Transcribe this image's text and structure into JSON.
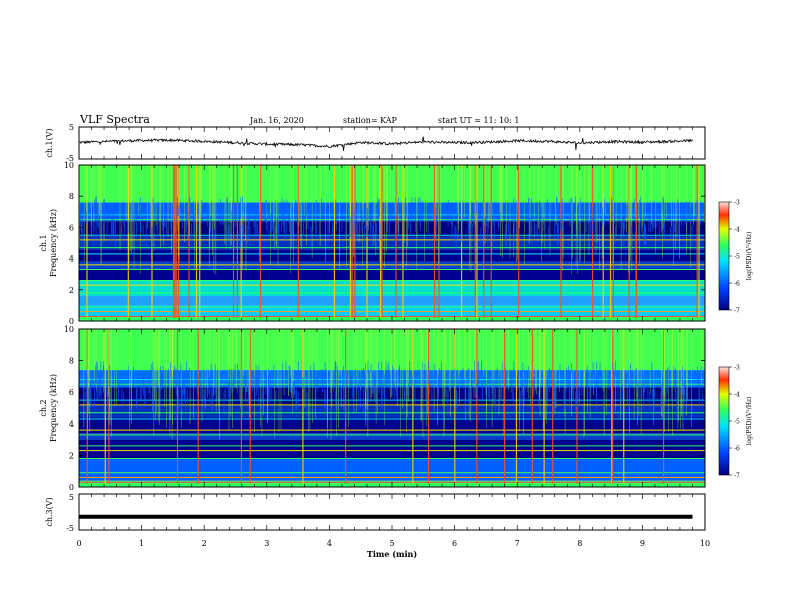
{
  "header": {
    "title": "VLF Spectra",
    "date": "Jan. 16, 2020",
    "station": "station= KAP",
    "start": "start  UT =   11: 10: 1"
  },
  "chart_data": [
    {
      "type": "line",
      "panel": "ch1-waveform",
      "ylabel": "ch.1(V)",
      "ylim": [
        -5,
        5
      ],
      "yticks": [
        "5",
        "-5"
      ],
      "x": [
        0,
        0.5,
        1,
        1.5,
        2,
        2.5,
        3,
        3.5,
        4,
        4.5,
        5,
        5.5,
        6,
        6.5,
        7,
        7.5,
        8,
        8.5,
        9,
        9.5,
        9.8
      ],
      "y": [
        0.2,
        0.6,
        0.9,
        1.0,
        0.6,
        0.1,
        -0.4,
        -0.6,
        -1.2,
        0.2,
        -0.3,
        0.4,
        0.1,
        0.3,
        0.8,
        0.6,
        0.0,
        0.5,
        0.3,
        0.6,
        0.9
      ]
    },
    {
      "type": "heatmap",
      "panel": "ch1-spectrogram",
      "ylabel": "ch.1",
      "ylabel2": "Frequency (kHz)",
      "ylim": [
        0,
        10
      ],
      "yticks": [
        "0",
        "2",
        "4",
        "6",
        "8",
        "10"
      ],
      "colorbar": {
        "label": "log(PSD)(V²/Hz)",
        "ticks": [
          "-3",
          "-4",
          "-5",
          "-6",
          "-7"
        ],
        "range": [
          -7,
          -3
        ]
      }
    },
    {
      "type": "heatmap",
      "panel": "ch2-spectrogram",
      "ylabel": "ch.2",
      "ylabel2": "Frequency (kHz)",
      "ylim": [
        0,
        10
      ],
      "yticks": [
        "0",
        "2",
        "4",
        "6",
        "8",
        "10"
      ],
      "colorbar": {
        "label": "log(PSD)(V²/Hz)",
        "ticks": [
          "-3",
          "-4",
          "-5",
          "-6",
          "-7"
        ],
        "range": [
          -7,
          -3
        ]
      }
    },
    {
      "type": "line",
      "panel": "ch3-waveform",
      "ylabel": "ch.3(V)",
      "ylim": [
        -5,
        5
      ],
      "yticks": [
        "5",
        "-5"
      ],
      "x": [
        0,
        9.8
      ],
      "y": [
        -1.5,
        -1.5
      ]
    }
  ],
  "xaxis": {
    "label": "Time (min)",
    "ticks": [
      "0",
      "1",
      "2",
      "3",
      "4",
      "5",
      "6",
      "7",
      "8",
      "9",
      "10"
    ],
    "xlim": [
      0,
      10
    ]
  },
  "colors": {
    "low": "#00007f",
    "mid_low": "#0050ff",
    "mid": "#00ffa0",
    "mid_high": "#7fff00",
    "high": "#ffe000",
    "top": "#ff0000"
  }
}
